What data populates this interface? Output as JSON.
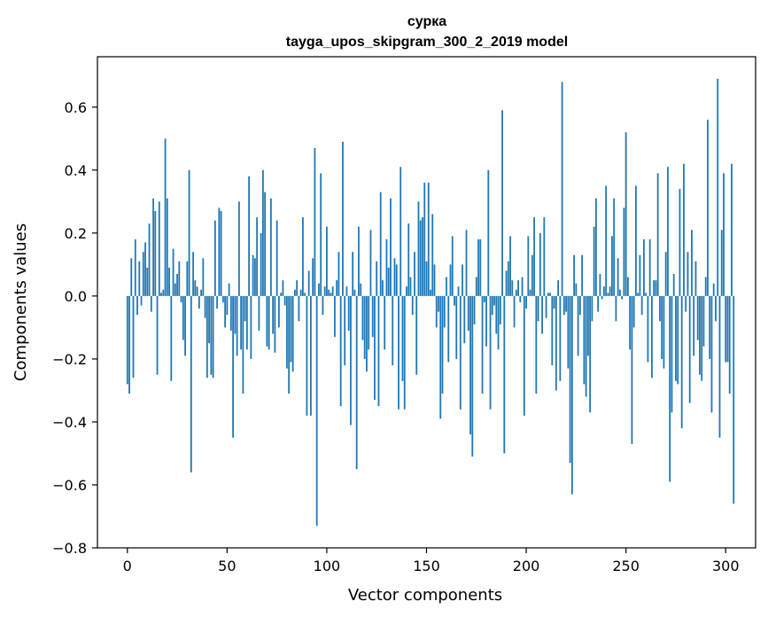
{
  "chart_data": {
    "type": "bar",
    "title_line1": "сурка",
    "title_line2": "tayga_upos_skipgram_300_2_2019 model",
    "xlabel": "Vector components",
    "ylabel": "Components values",
    "xlim": [
      -15,
      315
    ],
    "ylim": [
      -0.8,
      0.76
    ],
    "x_ticks": [
      0,
      50,
      100,
      150,
      200,
      250,
      300
    ],
    "x_tick_labels": [
      "0",
      "50",
      "100",
      "150",
      "200",
      "250",
      "300"
    ],
    "y_ticks": [
      -0.8,
      -0.6,
      -0.4,
      -0.2,
      0.0,
      0.2,
      0.4,
      0.6
    ],
    "y_tick_labels": [
      "−0.8",
      "−0.6",
      "−0.4",
      "−0.2",
      "0.0",
      "0.2",
      "0.4",
      "0.6"
    ],
    "bar_color": "#1f77b4",
    "values": [
      -0.28,
      -0.31,
      0.12,
      -0.26,
      0.18,
      -0.06,
      0.11,
      -0.03,
      0.14,
      0.17,
      0.09,
      0.23,
      -0.05,
      0.31,
      0.27,
      -0.25,
      0.3,
      0.01,
      0.02,
      0.5,
      0.31,
      0.09,
      -0.27,
      0.15,
      0.04,
      0.07,
      0.11,
      -0.02,
      -0.14,
      -0.19,
      0.11,
      0.4,
      -0.56,
      0.14,
      0.05,
      0.03,
      -0.04,
      0.02,
      0.12,
      -0.07,
      -0.26,
      -0.15,
      -0.25,
      -0.26,
      0.24,
      -0.04,
      0.28,
      0.27,
      -0.02,
      -0.1,
      -0.06,
      0.04,
      -0.11,
      -0.45,
      -0.12,
      -0.19,
      0.3,
      -0.17,
      -0.31,
      -0.08,
      -0.17,
      0.38,
      -0.2,
      0.13,
      0.12,
      0.25,
      -0.11,
      0.2,
      0.4,
      0.33,
      -0.16,
      -0.17,
      0.31,
      -0.12,
      -0.18,
      0.24,
      -0.1,
      0.01,
      0.05,
      -0.03,
      -0.23,
      -0.31,
      -0.21,
      -0.24,
      0.02,
      0.05,
      -0.08,
      0.02,
      0.25,
      0.01,
      -0.38,
      0.08,
      -0.38,
      0.12,
      0.47,
      -0.73,
      0.04,
      0.39,
      -0.06,
      0.03,
      0.22,
      0.02,
      0.01,
      0.03,
      -0.13,
      0.05,
      0.14,
      -0.35,
      0.49,
      -0.22,
      0.03,
      -0.11,
      -0.41,
      0.14,
      0.02,
      -0.55,
      0.22,
      0.04,
      -0.14,
      -0.2,
      -0.24,
      -0.17,
      0.21,
      -0.13,
      -0.33,
      0.11,
      -0.35,
      0.33,
      0.05,
      -0.17,
      0.18,
      0.09,
      0.31,
      -0.22,
      0.12,
      0.1,
      -0.36,
      0.41,
      -0.27,
      -0.36,
      0.03,
      0.23,
      0.06,
      -0.06,
      0.14,
      -0.25,
      0.3,
      0.24,
      0.25,
      0.36,
      0.11,
      0.36,
      0.02,
      0.26,
      0.1,
      -0.1,
      -0.05,
      -0.39,
      -0.31,
      -0.1,
      0.06,
      -0.21,
      0.1,
      0.19,
      -0.03,
      -0.2,
      0.03,
      -0.36,
      0.1,
      -0.15,
      0.21,
      -0.11,
      -0.44,
      -0.51,
      -0.09,
      0.06,
      0.18,
      0.18,
      -0.31,
      -0.02,
      -0.16,
      0.4,
      -0.36,
      -0.06,
      -0.03,
      -0.12,
      -0.17,
      -0.09,
      0.59,
      -0.5,
      0.08,
      0.11,
      0.19,
      0.05,
      -0.1,
      0.02,
      0.05,
      -0.02,
      0.06,
      -0.38,
      -0.04,
      0.19,
      0.02,
      0.13,
      0.25,
      -0.31,
      -0.08,
      0.2,
      -0.12,
      0.25,
      -0.07,
      0.01,
      0.01,
      -0.22,
      -0.04,
      -0.3,
      0.05,
      -0.27,
      0.68,
      -0.06,
      -0.05,
      -0.23,
      -0.53,
      -0.63,
      0.13,
      0.04,
      -0.19,
      -0.06,
      0.13,
      -0.28,
      -0.32,
      -0.19,
      -0.37,
      -0.08,
      0.22,
      0.31,
      -0.05,
      0.07,
      -0.01,
      0.03,
      0.35,
      0.01,
      0.03,
      0.19,
      0.31,
      -0.08,
      0.12,
      0.02,
      -0.01,
      0.28,
      0.52,
      0.06,
      -0.17,
      -0.47,
      -0.1,
      0.35,
      0.01,
      0.13,
      -0.06,
      0.18,
      0.01,
      -0.21,
      0.18,
      -0.26,
      0.05,
      0.05,
      0.39,
      -0.08,
      -0.2,
      -0.23,
      0.14,
      0.41,
      -0.59,
      -0.37,
      0.07,
      -0.27,
      -0.28,
      0.34,
      -0.42,
      0.42,
      -0.05,
      0.14,
      -0.34,
      0.21,
      -0.19,
      0.11,
      -0.14,
      -0.25,
      -0.27,
      -0.16,
      0.06,
      0.56,
      -0.2,
      -0.37,
      0.04,
      -0.08,
      0.69,
      -0.45,
      0.21,
      0.39,
      -0.21,
      -0.21,
      -0.31,
      0.42,
      -0.66
    ]
  }
}
